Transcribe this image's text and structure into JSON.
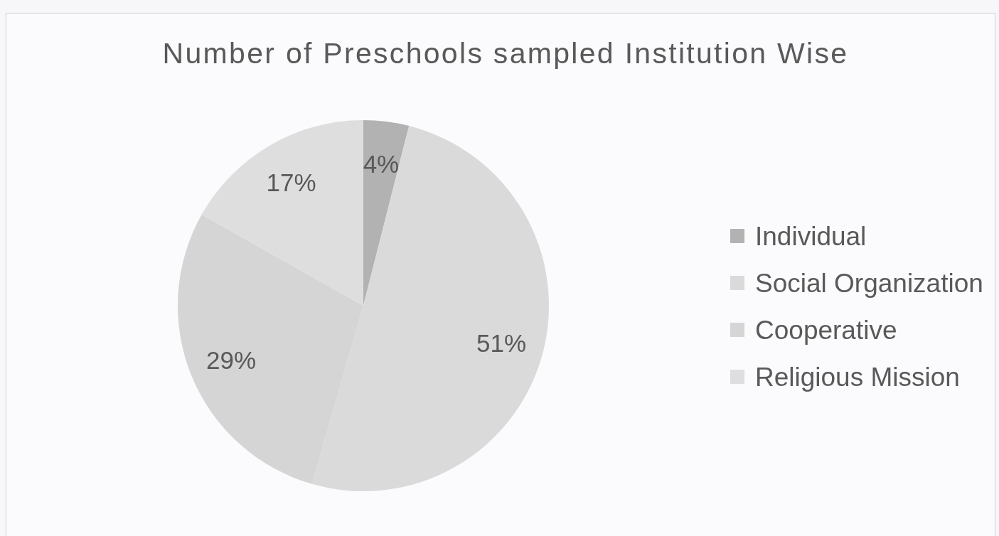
{
  "chart_data": {
    "type": "pie",
    "title": "Number of Preschools sampled Institution Wise",
    "categories": [
      "Individual",
      "Social Organization",
      "Cooperative",
      "Religious Mission"
    ],
    "values": [
      4,
      51,
      29,
      17
    ],
    "value_labels": [
      "4%",
      "51%",
      "29%",
      "17%"
    ],
    "colors": [
      "#b2b2b2",
      "#dadada",
      "#d5d5d5",
      "#dedede"
    ],
    "legend": "right"
  }
}
